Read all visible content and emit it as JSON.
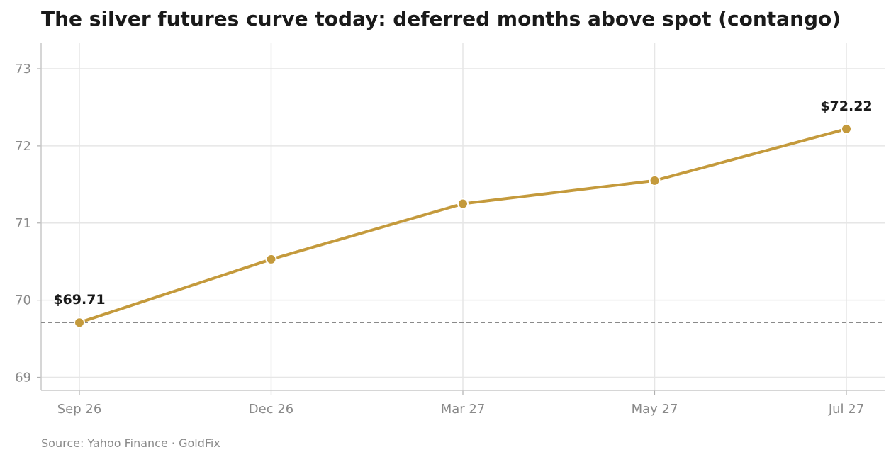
{
  "chart_data": {
    "type": "line",
    "title": "The silver futures curve today: deferred months above spot (contango)",
    "source": "Source: Yahoo Finance · GoldFix",
    "categories": [
      "Sep 26",
      "Dec 26",
      "Mar 27",
      "May 27",
      "Jul 27"
    ],
    "series": [
      {
        "values": [
          69.71,
          70.53,
          71.25,
          71.55,
          72.22
        ]
      }
    ],
    "data_labels": [
      {
        "index": 0,
        "text": "$69.71"
      },
      {
        "index": 4,
        "text": "$72.22"
      }
    ],
    "reference_line": {
      "value": 69.71,
      "style": "dashed"
    },
    "yticks": [
      69,
      70,
      71,
      72,
      73
    ],
    "ylim": [
      68.83,
      73.34
    ],
    "grid": true,
    "line_color": "#c49a3c",
    "reference_color": "#8a8a8a",
    "grid_color": "#e6e6e6"
  }
}
